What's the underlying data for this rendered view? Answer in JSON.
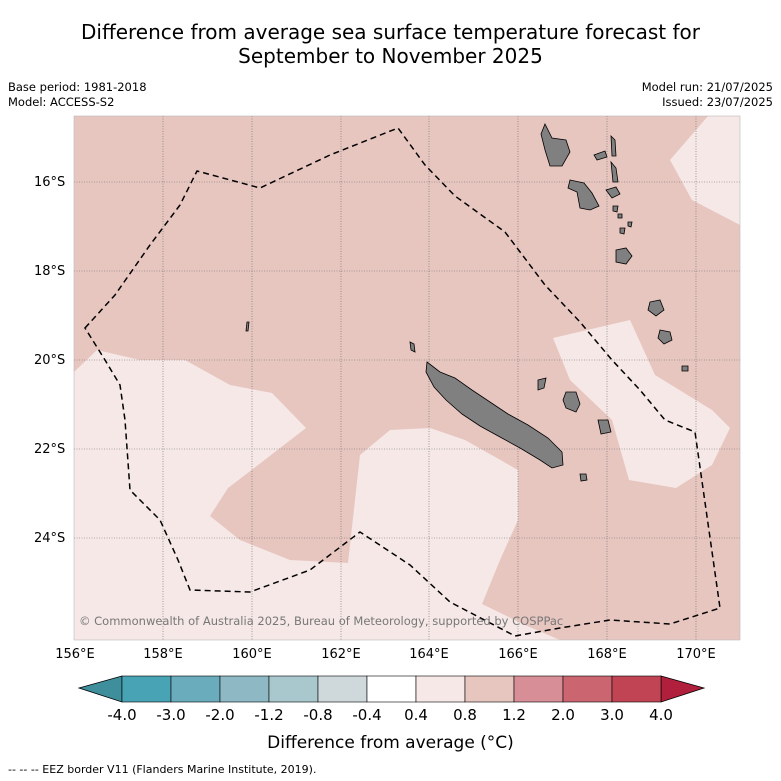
{
  "title_line1": "Difference from average sea surface temperature forecast for",
  "title_line2": "September to November 2025",
  "base_period": "Base period: 1981-2018",
  "model": "Model: ACCESS-S2",
  "model_run": "Model run: 21/07/2025",
  "issued": "Issued: 23/07/2025",
  "lat_labels": [
    "16°S",
    "18°S",
    "20°S",
    "22°S",
    "24°S"
  ],
  "lon_labels": [
    "156°E",
    "158°E",
    "160°E",
    "162°E",
    "164°E",
    "166°E",
    "168°E",
    "170°E"
  ],
  "copyright": "© Commonwealth of Australia 2025, Bureau of Meteorology, supported by COSPPac",
  "colorbar": {
    "ticks": [
      "-4.0",
      "-3.0",
      "-2.0",
      "-1.2",
      "-0.8",
      "-0.4",
      "0.4",
      "0.8",
      "1.2",
      "2.0",
      "3.0",
      "4.0"
    ],
    "colors": [
      "#3f8e9c",
      "#48a3b4",
      "#6aacbb",
      "#8db8c4",
      "#a9c8cd",
      "#cfd9db",
      "#ffffff",
      "#f5e8e6",
      "#e8c6c0",
      "#d88e96",
      "#cb6671",
      "#c04454",
      "#b0203c"
    ],
    "title": "Difference from average (°C)"
  },
  "colors": {
    "band_04_08": "#f5e8e6",
    "band_08_12": "#e8c6c0",
    "land": "#808080",
    "eez": "#000000"
  },
  "footnote": "--  --  -- EEZ border V11 (Flanders Marine Institute, 2019)."
}
